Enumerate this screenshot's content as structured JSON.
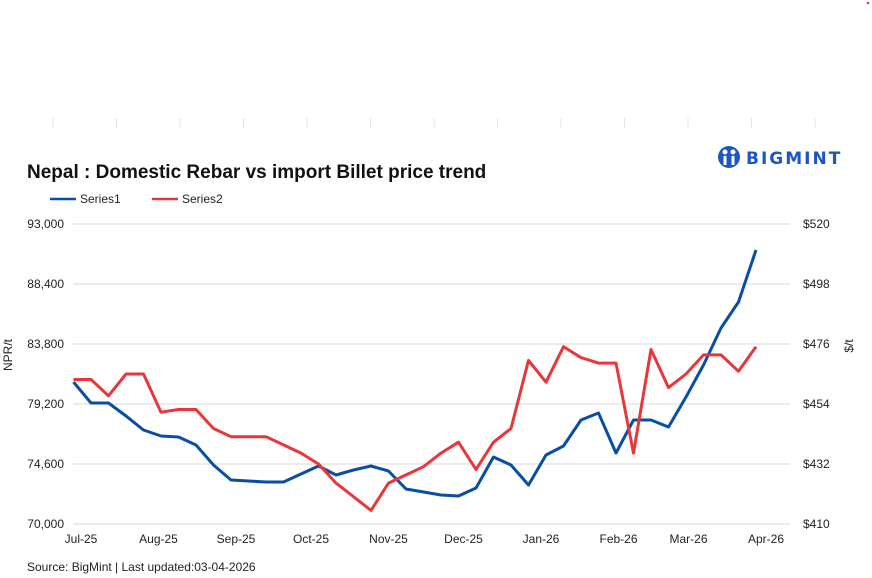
{
  "chart_data": {
    "type": "line",
    "title": "Nepal : Domestic Rebar vs import Billet price trend",
    "source": "Source: BigMint | Last updated:03-04-2026",
    "logo_text": "BIGMINT",
    "ylabel_left": "NPR/t",
    "ylabel_right": "$/t",
    "y_left": {
      "min": 70000,
      "max": 93000,
      "ticks": [
        "70,000",
        "74,600",
        "79,200",
        "83,800",
        "88,400",
        "93,000"
      ]
    },
    "y_right": {
      "min": 410,
      "max": 520,
      "ticks": [
        "$410",
        "$432",
        "$454",
        "$476",
        "$498",
        "$520"
      ]
    },
    "x_ticks": [
      {
        "label": "Jul-25",
        "date": "2025-07-01"
      },
      {
        "label": "Aug-25",
        "date": "2025-08-01"
      },
      {
        "label": "Sep-25",
        "date": "2025-09-01"
      },
      {
        "label": "Oct-25",
        "date": "2025-10-01"
      },
      {
        "label": "Nov-25",
        "date": "2025-11-01"
      },
      {
        "label": "Dec-25",
        "date": "2025-12-01"
      },
      {
        "label": "Jan-26",
        "date": "2026-01-01"
      },
      {
        "label": "Feb-26",
        "date": "2026-02-01"
      },
      {
        "label": "Mar-26",
        "date": "2026-03-01"
      },
      {
        "label": "Apr-26",
        "date": "2026-04-01"
      }
    ],
    "grid": true,
    "legend_placement": "top-left",
    "x": [
      "2025-06-28",
      "2025-07-05",
      "2025-07-12",
      "2025-07-19",
      "2025-07-26",
      "2025-08-02",
      "2025-08-09",
      "2025-08-16",
      "2025-08-23",
      "2025-08-30",
      "2025-09-06",
      "2025-09-13",
      "2025-09-20",
      "2025-09-27",
      "2025-10-04",
      "2025-10-11",
      "2025-10-18",
      "2025-10-25",
      "2025-11-01",
      "2025-11-08",
      "2025-11-15",
      "2025-11-22",
      "2025-11-29",
      "2025-12-06",
      "2025-12-13",
      "2025-12-20",
      "2025-12-27",
      "2026-01-03",
      "2026-01-10",
      "2026-01-17",
      "2026-01-24",
      "2026-01-31",
      "2026-02-07",
      "2026-02-14",
      "2026-02-21",
      "2026-02-28",
      "2026-03-07",
      "2026-03-14",
      "2026-03-21",
      "2026-03-28"
    ],
    "series": [
      {
        "name": "Series1",
        "axis": "left",
        "color": "#0a4ea3",
        "values": [
          80890,
          79280,
          79280,
          78280,
          77210,
          76750,
          76670,
          76060,
          74520,
          73370,
          73300,
          73220,
          73220,
          73830,
          74450,
          73760,
          74140,
          74450,
          74060,
          72680,
          72450,
          72220,
          72150,
          72760,
          75140,
          74520,
          72990,
          75290,
          75980,
          77970,
          78510,
          75440,
          77970,
          77970,
          77440,
          79740,
          82190,
          85030,
          87020,
          91010
        ]
      },
      {
        "name": "Series2",
        "axis": "right",
        "color": "#e8363a",
        "values": [
          463,
          463,
          457,
          465,
          465,
          451,
          452,
          452,
          445,
          442,
          442,
          442,
          439,
          436,
          432,
          425,
          420,
          415,
          425,
          428,
          431,
          436,
          440,
          430,
          440,
          445,
          470,
          462,
          475,
          471,
          469,
          469,
          436,
          474,
          460,
          465,
          472,
          472,
          466,
          475
        ]
      }
    ]
  }
}
